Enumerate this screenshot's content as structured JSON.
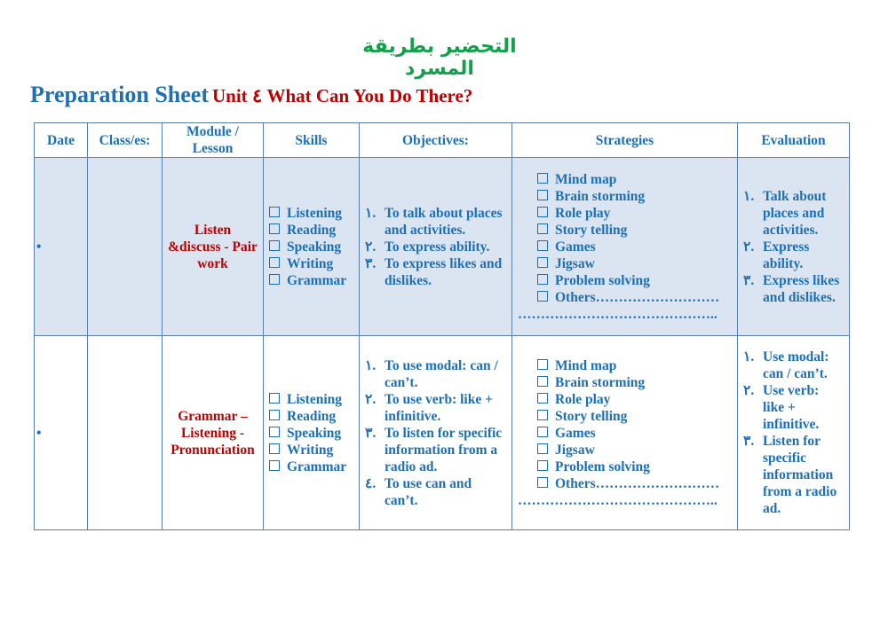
{
  "arabic_title": "التحضير بطريقة المسرد",
  "title": {
    "main": "Preparation Sheet",
    "unit": "Unit ٤ What Can You Do There?"
  },
  "headers": [
    "Date",
    "Class/es:",
    "Module / Lesson",
    "Skills",
    "Objectives:",
    "Strategies",
    "Evaluation"
  ],
  "rows": [
    {
      "date": "•",
      "class": "",
      "lesson": "Listen &discuss - Pair work",
      "skills": [
        "Listening",
        "Reading",
        "Speaking",
        "Writing",
        "Grammar"
      ],
      "objectives": [
        {
          "n": "١.",
          "t": "To talk about places and activities."
        },
        {
          "n": "٢.",
          "t": "To express ability."
        },
        {
          "n": "٣.",
          "t": "To express likes and dislikes."
        }
      ],
      "strategies": [
        "Mind map",
        "Brain storming",
        "Role play",
        "Story telling",
        "Games",
        "Jigsaw",
        "Problem solving",
        "Others………………………"
      ],
      "strategies_line": "……………………………………..",
      "evaluation": [
        {
          "n": "١.",
          "t": "Talk about places and activities."
        },
        {
          "n": "٢.",
          "t": "Express ability."
        },
        {
          "n": "٣.",
          "t": "Express likes and dislikes."
        }
      ]
    },
    {
      "date": "•",
      "class": "",
      "lesson": "Grammar – Listening - Pronunciation",
      "skills": [
        "Listening",
        "Reading",
        "Speaking",
        "Writing",
        "Grammar"
      ],
      "objectives": [
        {
          "n": "١.",
          "t": "To use modal: can / can’t."
        },
        {
          "n": "٢.",
          "t": "To use verb: like + infinitive."
        },
        {
          "n": "٣.",
          "t": "To listen for specific information from a radio ad."
        },
        {
          "n": "٤.",
          "t": "To use can and can’t."
        }
      ],
      "strategies": [
        "Mind map",
        "Brain storming",
        "Role play",
        "Story telling",
        "Games",
        "Jigsaw",
        "Problem solving",
        "Others………………………"
      ],
      "strategies_line": "……………………………………..",
      "evaluation": [
        {
          "n": "١.",
          "t": "Use modal: can / can’t."
        },
        {
          "n": "٢.",
          "t": "Use verb: like + infinitive."
        },
        {
          "n": "٣.",
          "t": "Listen for specific information from a radio ad."
        }
      ]
    }
  ]
}
